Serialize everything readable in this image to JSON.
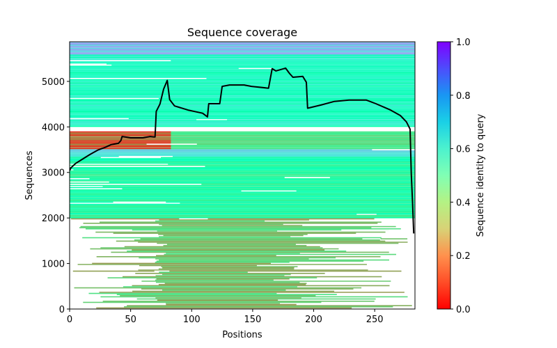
{
  "chart_data": {
    "type": "heatmap",
    "title": "Sequence coverage",
    "xlabel": "Positions",
    "ylabel": "Sequences",
    "xlim": [
      0,
      283
    ],
    "ylim": [
      0,
      5870
    ],
    "xticks": [
      0,
      50,
      100,
      150,
      200,
      250
    ],
    "yticks": [
      0,
      1000,
      2000,
      3000,
      4000,
      5000
    ],
    "grid": false,
    "colorbar": {
      "label": "Sequence identity to query",
      "colormap": "rainbow_r",
      "range": [
        0.0,
        1.0
      ],
      "ticks": [
        "0.0",
        "0.2",
        "0.4",
        "0.6",
        "0.8",
        "1.0"
      ],
      "colors": [
        "#ff0000",
        "#ff8247",
        "#b4f284",
        "#4cf2ce",
        "#0af0f0",
        "#7f00ff"
      ]
    },
    "alignment_bands": [
      {
        "y_range": [
          5600,
          5870
        ],
        "x_range": [
          0,
          283
        ],
        "identity": 0.72,
        "note": "top high-identity cyan/blue rows"
      },
      {
        "y_range": [
          4000,
          5600
        ],
        "x_range": [
          0,
          283
        ],
        "identity": 0.55,
        "note": "mostly aquamarine-green, full length"
      },
      {
        "y_range": [
          3500,
          3900
        ],
        "x_range": [
          0,
          83
        ],
        "identity": 0.12,
        "note": "red/orange N-terminal block"
      },
      {
        "y_range": [
          3350,
          3500
        ],
        "x_range": [
          0,
          283
        ],
        "identity": 0.65,
        "note": "cyan band"
      },
      {
        "y_range": [
          2000,
          3350
        ],
        "x_range": [
          0,
          283
        ],
        "identity": 0.45,
        "note": "green-yellow rows"
      },
      {
        "y_range": [
          0,
          2000
        ],
        "x_range": [
          0,
          283
        ],
        "identity": 0.28,
        "note": "orange/yellow partial rows, dense in 70-197"
      }
    ],
    "series": [
      {
        "name": "coverage",
        "color": "#000000",
        "x": [
          0,
          1,
          5,
          11,
          17,
          23,
          26,
          29,
          34,
          40,
          42,
          43,
          50,
          60,
          66,
          69,
          70,
          71,
          74,
          77,
          80,
          82,
          86,
          97,
          109,
          113,
          114,
          123,
          125,
          131,
          143,
          149,
          163,
          166,
          169,
          177,
          180,
          183,
          191,
          194,
          195,
          206,
          217,
          229,
          243,
          251,
          263,
          271,
          276,
          279,
          280,
          281,
          282
        ],
        "values": [
          3040,
          3100,
          3200,
          3300,
          3400,
          3490,
          3520,
          3550,
          3610,
          3640,
          3700,
          3790,
          3760,
          3760,
          3790,
          3780,
          3780,
          4340,
          4500,
          4830,
          5020,
          4600,
          4460,
          4370,
          4300,
          4220,
          4510,
          4510,
          4890,
          4920,
          4920,
          4890,
          4850,
          5280,
          5230,
          5290,
          5180,
          5090,
          5110,
          4980,
          4410,
          4480,
          4560,
          4590,
          4590,
          4510,
          4370,
          4250,
          4110,
          3950,
          2970,
          2350,
          1660
        ]
      }
    ]
  }
}
